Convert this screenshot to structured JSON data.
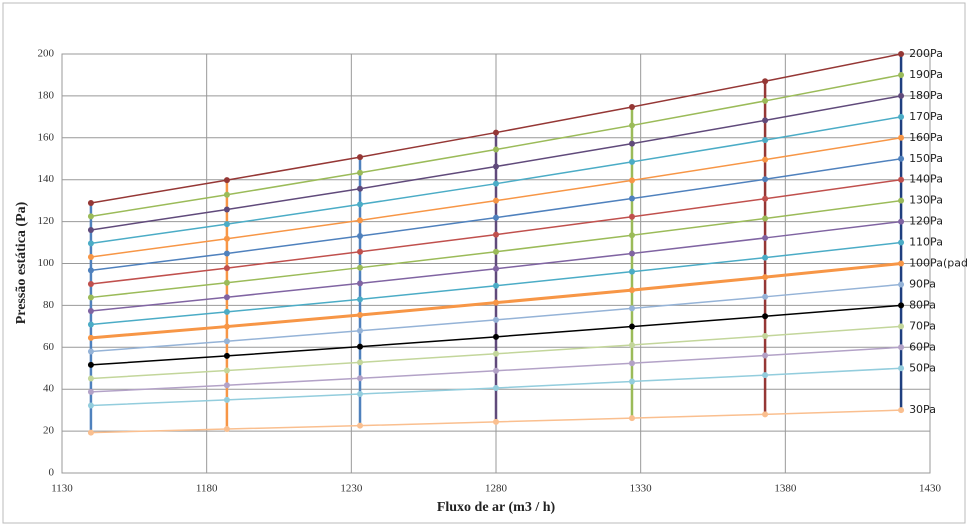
{
  "chart_data": {
    "type": "line",
    "x_label": "Fluxo de ar (m3 / h)",
    "y_label": "Pressão estática (Pa)",
    "x": [
      1140,
      1187,
      1233,
      1280,
      1327,
      1373,
      1420
    ],
    "xlim": [
      1130,
      1430
    ],
    "xticks": [
      1130,
      1180,
      1230,
      1280,
      1330,
      1380,
      1430
    ],
    "ylim": [
      0,
      200
    ],
    "yticks": [
      0,
      20,
      40,
      60,
      80,
      100,
      120,
      140,
      160,
      180,
      200
    ],
    "grid": true,
    "vertical_colors": [
      "#4f81bd",
      "#f79646",
      "#4f81bd",
      "#604a7b",
      "#9bbb59",
      "#953735",
      "#1f3f7f"
    ],
    "series": [
      {
        "name": "200Pa",
        "color": "#953735",
        "values": [
          128.9,
          139.8,
          150.8,
          162.5,
          174.7,
          187.0,
          200
        ]
      },
      {
        "name": "190Pa",
        "color": "#9bbb59",
        "values": [
          122.5,
          132.8,
          143.3,
          154.4,
          165.9,
          177.6,
          190
        ]
      },
      {
        "name": "180Pa",
        "color": "#604a7b",
        "values": [
          116.0,
          125.8,
          135.7,
          146.3,
          157.2,
          168.3,
          180
        ]
      },
      {
        "name": "170Pa",
        "color": "#4bacc6",
        "values": [
          109.6,
          118.8,
          128.2,
          138.1,
          148.5,
          158.9,
          170
        ]
      },
      {
        "name": "160Pa",
        "color": "#f79646",
        "values": [
          103.1,
          111.8,
          120.6,
          130.0,
          139.7,
          149.6,
          160
        ]
      },
      {
        "name": "150Pa",
        "color": "#4f81bd",
        "values": [
          96.7,
          104.8,
          113.1,
          121.9,
          131.0,
          140.2,
          150
        ]
      },
      {
        "name": "140Pa",
        "color": "#c0504d",
        "values": [
          90.2,
          97.8,
          105.6,
          113.8,
          122.3,
          130.9,
          140
        ]
      },
      {
        "name": "130Pa",
        "color": "#9bbb59",
        "values": [
          83.8,
          90.8,
          98.0,
          105.6,
          113.5,
          121.5,
          130
        ]
      },
      {
        "name": "120Pa",
        "color": "#8064a2",
        "values": [
          77.3,
          83.9,
          90.5,
          97.5,
          104.8,
          112.2,
          120
        ]
      },
      {
        "name": "110Pa",
        "color": "#4bacc6",
        "values": [
          70.9,
          76.9,
          82.9,
          89.4,
          96.1,
          102.8,
          110
        ]
      },
      {
        "name": "100Pa(padrão)",
        "color": "#f79646",
        "width": 3,
        "values": [
          64.5,
          69.9,
          75.4,
          81.3,
          87.3,
          93.5,
          100
        ]
      },
      {
        "name": "90Pa",
        "color": "#95b3d7",
        "values": [
          58.0,
          62.9,
          67.9,
          73.1,
          78.6,
          84.1,
          90
        ]
      },
      {
        "name": "80Pa",
        "color": "#000000",
        "values": [
          51.6,
          55.9,
          60.3,
          65.0,
          69.9,
          74.8,
          80
        ]
      },
      {
        "name": "70Pa",
        "color": "#c3d69b",
        "values": [
          45.1,
          48.9,
          52.8,
          56.9,
          61.1,
          65.4,
          70
        ]
      },
      {
        "name": "60Pa",
        "color": "#b3a2c7",
        "values": [
          38.7,
          41.9,
          45.2,
          48.8,
          52.4,
          56.1,
          60
        ]
      },
      {
        "name": "50Pa",
        "color": "#93cddd",
        "values": [
          32.2,
          34.9,
          37.7,
          40.6,
          43.7,
          46.7,
          50
        ]
      },
      {
        "name": "30Pa",
        "color": "#fabf8f",
        "values": [
          19.3,
          21.0,
          22.6,
          24.4,
          26.2,
          28.0,
          30
        ]
      }
    ]
  }
}
